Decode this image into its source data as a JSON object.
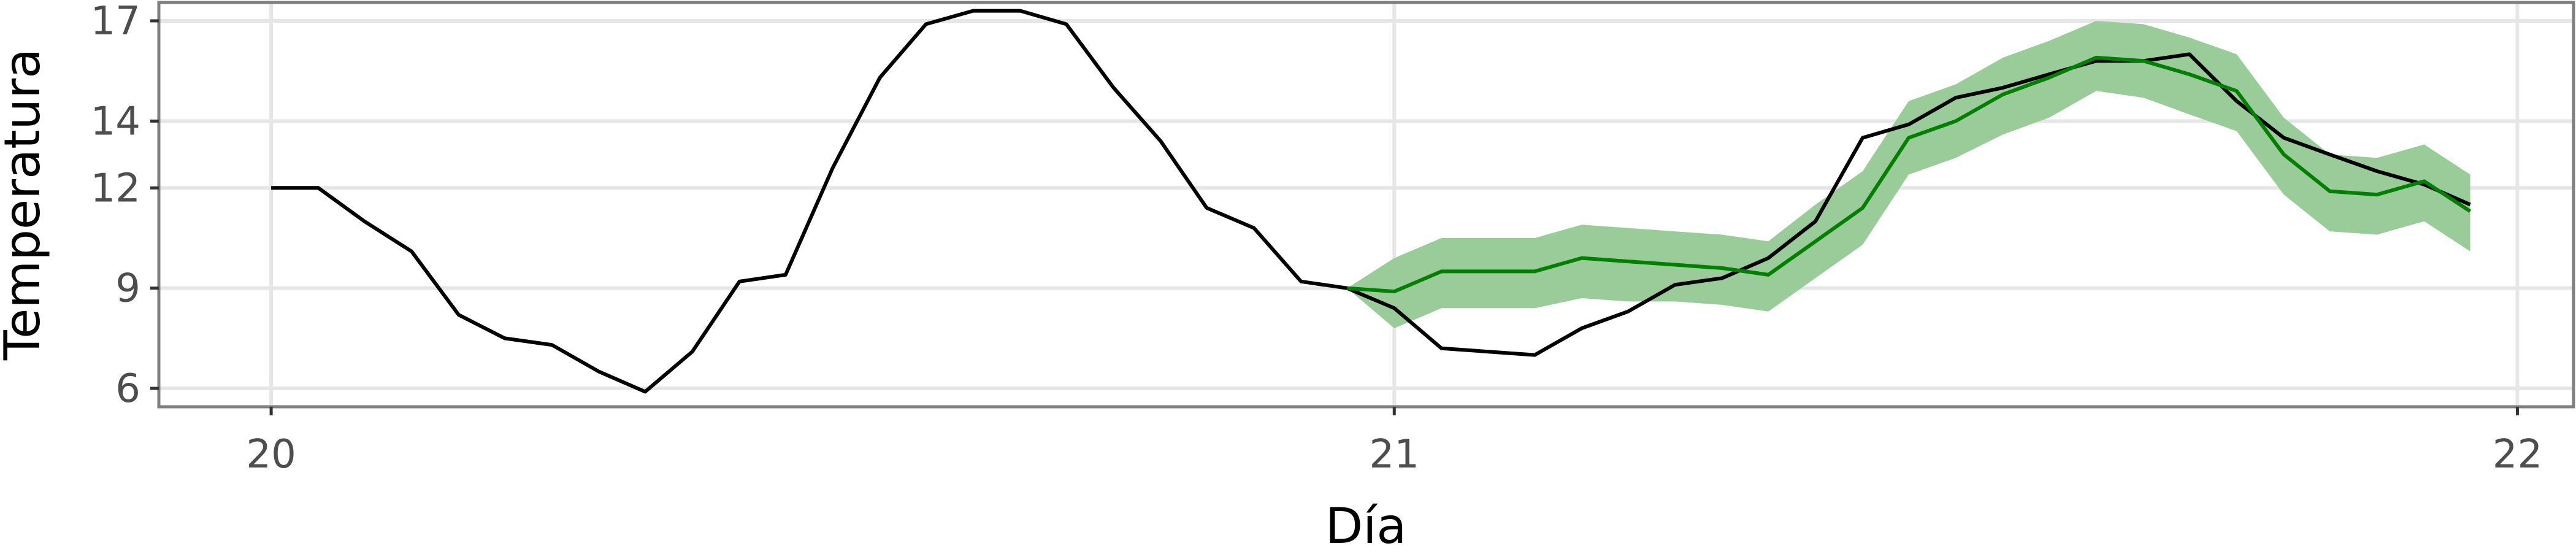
{
  "chart_data": {
    "type": "line",
    "title": "",
    "xlabel": "Día",
    "ylabel": "Temperatura",
    "xlim": [
      19.9,
      22.05
    ],
    "ylim": [
      5.45,
      17.55
    ],
    "x_ticks": [
      20,
      21,
      22
    ],
    "x_tick_labels": [
      "20",
      "21",
      "22"
    ],
    "y_ticks": [
      6,
      9,
      12,
      14,
      17
    ],
    "y_tick_labels": [
      "6",
      "9",
      "12",
      "14",
      "17"
    ],
    "grid": true,
    "legend": "none",
    "colors": {
      "observed": "#000000",
      "forecast": "#008000",
      "interval": "#99cc99",
      "grid": "#e6e6e6",
      "frame": "#7f7f7f"
    },
    "series": [
      {
        "role": "observed",
        "x": [
          20.0,
          20.042,
          20.083,
          20.125,
          20.167,
          20.208,
          20.25,
          20.292,
          20.333,
          20.375,
          20.417,
          20.458,
          20.5,
          20.542,
          20.583,
          20.625,
          20.667,
          20.708,
          20.75,
          20.792,
          20.833,
          20.875,
          20.917,
          20.958,
          21.0,
          21.042,
          21.083,
          21.125,
          21.167,
          21.208,
          21.25,
          21.292,
          21.333,
          21.375,
          21.417,
          21.458,
          21.5,
          21.542,
          21.583,
          21.625,
          21.667,
          21.708,
          21.75,
          21.792,
          21.833,
          21.875,
          21.917,
          21.958
        ],
        "y": [
          12.0,
          12.0,
          11.0,
          10.1,
          8.2,
          7.5,
          7.3,
          6.5,
          5.9,
          7.1,
          9.2,
          9.4,
          12.6,
          15.3,
          16.9,
          17.3,
          17.3,
          16.9,
          15.0,
          13.4,
          11.4,
          10.8,
          9.2,
          9.0,
          8.4,
          7.2,
          7.1,
          7.0,
          7.8,
          8.3,
          9.1,
          9.3,
          9.9,
          11.0,
          13.5,
          13.9,
          14.7,
          15.0,
          15.4,
          15.8,
          15.8,
          16.0,
          14.6,
          13.5,
          13.0,
          12.5,
          12.1,
          11.5
        ]
      },
      {
        "role": "forecast",
        "x": [
          20.958,
          21.0,
          21.042,
          21.083,
          21.125,
          21.167,
          21.208,
          21.25,
          21.292,
          21.333,
          21.375,
          21.417,
          21.458,
          21.5,
          21.542,
          21.583,
          21.625,
          21.667,
          21.708,
          21.75,
          21.792,
          21.833,
          21.875,
          21.917,
          21.958
        ],
        "y": [
          9.0,
          8.9,
          9.5,
          9.5,
          9.5,
          9.9,
          9.8,
          9.7,
          9.6,
          9.4,
          10.4,
          11.4,
          13.5,
          14.0,
          14.8,
          15.3,
          15.9,
          15.8,
          15.4,
          14.9,
          13.0,
          11.9,
          11.8,
          12.2,
          11.3
        ]
      }
    ],
    "interval": {
      "x": [
        20.958,
        21.0,
        21.042,
        21.083,
        21.125,
        21.167,
        21.208,
        21.25,
        21.292,
        21.333,
        21.375,
        21.417,
        21.458,
        21.5,
        21.542,
        21.583,
        21.625,
        21.667,
        21.708,
        21.75,
        21.792,
        21.833,
        21.875,
        21.917,
        21.958
      ],
      "lower": [
        9.0,
        7.8,
        8.4,
        8.4,
        8.4,
        8.7,
        8.6,
        8.6,
        8.5,
        8.3,
        9.3,
        10.3,
        12.4,
        12.9,
        13.6,
        14.1,
        14.9,
        14.7,
        14.2,
        13.7,
        11.8,
        10.7,
        10.6,
        11.0,
        10.1
      ],
      "upper": [
        9.0,
        9.9,
        10.5,
        10.5,
        10.5,
        10.9,
        10.8,
        10.7,
        10.6,
        10.4,
        11.5,
        12.5,
        14.6,
        15.1,
        15.9,
        16.4,
        17.0,
        16.9,
        16.5,
        16.0,
        14.1,
        13.0,
        12.9,
        13.3,
        12.4
      ]
    }
  }
}
